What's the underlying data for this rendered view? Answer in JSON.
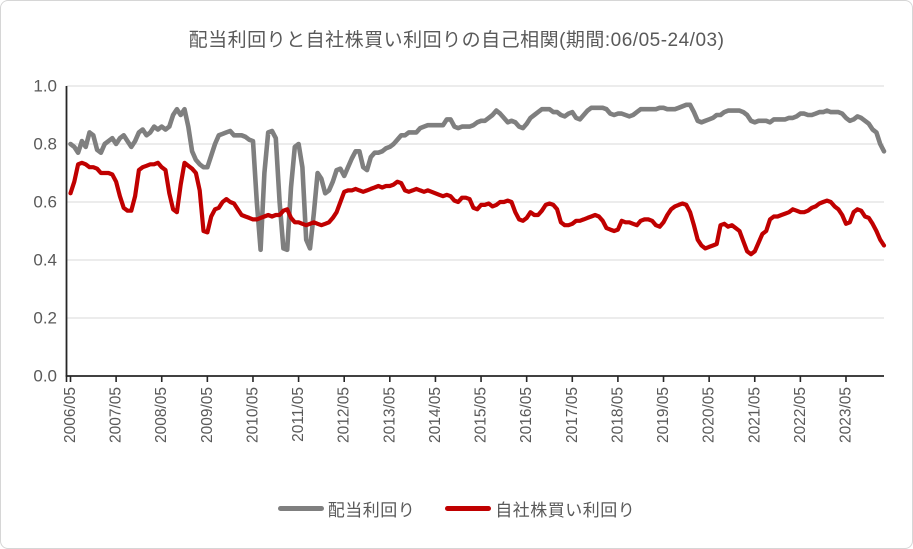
{
  "title": "配当利回りと自社株買い利回りの自己相関(期間:06/05-24/03)",
  "colors": {
    "dividend_line": "#7F7F7F",
    "buyback_line": "#C00000",
    "gridline": "#D9D9D9",
    "axis_line": "#262626",
    "tick_label": "#595959",
    "title_text": "#595959"
  },
  "legend": {
    "dividend_label": "配当利回り",
    "buyback_label": "自社株買い利回り"
  },
  "chart_data": {
    "type": "line",
    "title": "配当利回りと自社株買い利回りの自己相関(期間:06/05-24/03)",
    "xlabel": "",
    "ylabel": "",
    "x_start": "2006/05",
    "x_end": "2024/03",
    "x_frequency": "monthly",
    "x_tick_labels": [
      "2006/05",
      "2007/05",
      "2008/05",
      "2009/05",
      "2010/05",
      "2011/05",
      "2012/05",
      "2013/05",
      "2014/05",
      "2015/05",
      "2016/05",
      "2017/05",
      "2018/05",
      "2019/05",
      "2020/05",
      "2021/05",
      "2022/05",
      "2023/05"
    ],
    "months_per_tick": 12,
    "y_ticks": [
      0.0,
      0.2,
      0.4,
      0.6,
      0.8,
      1.0
    ],
    "ylim": [
      0.0,
      1.0
    ],
    "grid": true,
    "legend_position": "bottom",
    "series": [
      {
        "name": "配当利回り",
        "color": "#7F7F7F",
        "values": [
          0.8,
          0.79,
          0.77,
          0.81,
          0.79,
          0.84,
          0.83,
          0.78,
          0.77,
          0.8,
          0.81,
          0.82,
          0.8,
          0.82,
          0.83,
          0.81,
          0.79,
          0.81,
          0.84,
          0.85,
          0.83,
          0.84,
          0.86,
          0.85,
          0.86,
          0.85,
          0.86,
          0.9,
          0.92,
          0.9,
          0.92,
          0.86,
          0.775,
          0.745,
          0.73,
          0.72,
          0.72,
          0.76,
          0.8,
          0.83,
          0.835,
          0.84,
          0.845,
          0.83,
          0.83,
          0.83,
          0.825,
          0.815,
          0.81,
          0.6,
          0.435,
          0.7,
          0.84,
          0.845,
          0.82,
          0.6,
          0.44,
          0.435,
          0.65,
          0.79,
          0.8,
          0.72,
          0.47,
          0.44,
          0.56,
          0.7,
          0.68,
          0.63,
          0.64,
          0.67,
          0.71,
          0.715,
          0.69,
          0.72,
          0.75,
          0.775,
          0.775,
          0.72,
          0.71,
          0.755,
          0.77,
          0.77,
          0.775,
          0.785,
          0.79,
          0.8,
          0.815,
          0.83,
          0.83,
          0.84,
          0.84,
          0.84,
          0.855,
          0.86,
          0.865,
          0.865,
          0.865,
          0.865,
          0.865,
          0.885,
          0.885,
          0.86,
          0.855,
          0.86,
          0.86,
          0.86,
          0.865,
          0.875,
          0.88,
          0.88,
          0.89,
          0.9,
          0.915,
          0.905,
          0.89,
          0.875,
          0.88,
          0.875,
          0.86,
          0.855,
          0.87,
          0.89,
          0.9,
          0.91,
          0.92,
          0.92,
          0.92,
          0.91,
          0.91,
          0.9,
          0.895,
          0.905,
          0.91,
          0.89,
          0.885,
          0.9,
          0.915,
          0.925,
          0.925,
          0.925,
          0.925,
          0.92,
          0.905,
          0.9,
          0.905,
          0.905,
          0.9,
          0.895,
          0.9,
          0.91,
          0.92,
          0.92,
          0.92,
          0.92,
          0.92,
          0.925,
          0.925,
          0.92,
          0.92,
          0.92,
          0.925,
          0.93,
          0.935,
          0.935,
          0.91,
          0.88,
          0.875,
          0.88,
          0.885,
          0.89,
          0.9,
          0.9,
          0.91,
          0.915,
          0.915,
          0.915,
          0.915,
          0.91,
          0.9,
          0.88,
          0.875,
          0.88,
          0.88,
          0.88,
          0.875,
          0.885,
          0.885,
          0.885,
          0.885,
          0.89,
          0.89,
          0.895,
          0.905,
          0.905,
          0.9,
          0.9,
          0.905,
          0.91,
          0.91,
          0.915,
          0.91,
          0.91,
          0.91,
          0.905,
          0.89,
          0.88,
          0.885,
          0.895,
          0.89,
          0.88,
          0.87,
          0.85,
          0.84,
          0.8,
          0.775
        ]
      },
      {
        "name": "自社株買い利回り",
        "color": "#C00000",
        "values": [
          0.63,
          0.67,
          0.73,
          0.735,
          0.73,
          0.72,
          0.72,
          0.715,
          0.7,
          0.7,
          0.7,
          0.695,
          0.67,
          0.62,
          0.58,
          0.57,
          0.57,
          0.62,
          0.71,
          0.72,
          0.725,
          0.73,
          0.73,
          0.735,
          0.72,
          0.71,
          0.63,
          0.575,
          0.565,
          0.66,
          0.735,
          0.725,
          0.715,
          0.7,
          0.64,
          0.5,
          0.495,
          0.55,
          0.575,
          0.58,
          0.6,
          0.61,
          0.6,
          0.595,
          0.575,
          0.555,
          0.55,
          0.545,
          0.54,
          0.54,
          0.545,
          0.55,
          0.555,
          0.55,
          0.555,
          0.555,
          0.57,
          0.575,
          0.545,
          0.53,
          0.53,
          0.525,
          0.52,
          0.525,
          0.53,
          0.525,
          0.52,
          0.525,
          0.53,
          0.545,
          0.565,
          0.6,
          0.635,
          0.64,
          0.64,
          0.645,
          0.64,
          0.635,
          0.64,
          0.645,
          0.65,
          0.655,
          0.65,
          0.655,
          0.655,
          0.66,
          0.67,
          0.665,
          0.64,
          0.635,
          0.64,
          0.645,
          0.64,
          0.635,
          0.64,
          0.635,
          0.63,
          0.625,
          0.62,
          0.625,
          0.62,
          0.605,
          0.6,
          0.615,
          0.615,
          0.61,
          0.58,
          0.575,
          0.59,
          0.59,
          0.595,
          0.585,
          0.59,
          0.6,
          0.6,
          0.605,
          0.6,
          0.565,
          0.54,
          0.535,
          0.545,
          0.565,
          0.555,
          0.555,
          0.57,
          0.59,
          0.595,
          0.59,
          0.575,
          0.53,
          0.52,
          0.52,
          0.525,
          0.535,
          0.535,
          0.54,
          0.545,
          0.55,
          0.555,
          0.55,
          0.535,
          0.51,
          0.505,
          0.5,
          0.505,
          0.535,
          0.53,
          0.53,
          0.525,
          0.52,
          0.535,
          0.54,
          0.54,
          0.535,
          0.52,
          0.515,
          0.53,
          0.555,
          0.575,
          0.585,
          0.59,
          0.595,
          0.59,
          0.565,
          0.52,
          0.47,
          0.45,
          0.44,
          0.445,
          0.45,
          0.455,
          0.52,
          0.525,
          0.515,
          0.52,
          0.51,
          0.5,
          0.465,
          0.43,
          0.42,
          0.43,
          0.46,
          0.49,
          0.5,
          0.54,
          0.55,
          0.55,
          0.555,
          0.56,
          0.565,
          0.575,
          0.57,
          0.565,
          0.565,
          0.57,
          0.58,
          0.585,
          0.595,
          0.6,
          0.605,
          0.6,
          0.585,
          0.575,
          0.555,
          0.525,
          0.53,
          0.565,
          0.575,
          0.57,
          0.55,
          0.545,
          0.525,
          0.5,
          0.47,
          0.45
        ]
      }
    ]
  }
}
